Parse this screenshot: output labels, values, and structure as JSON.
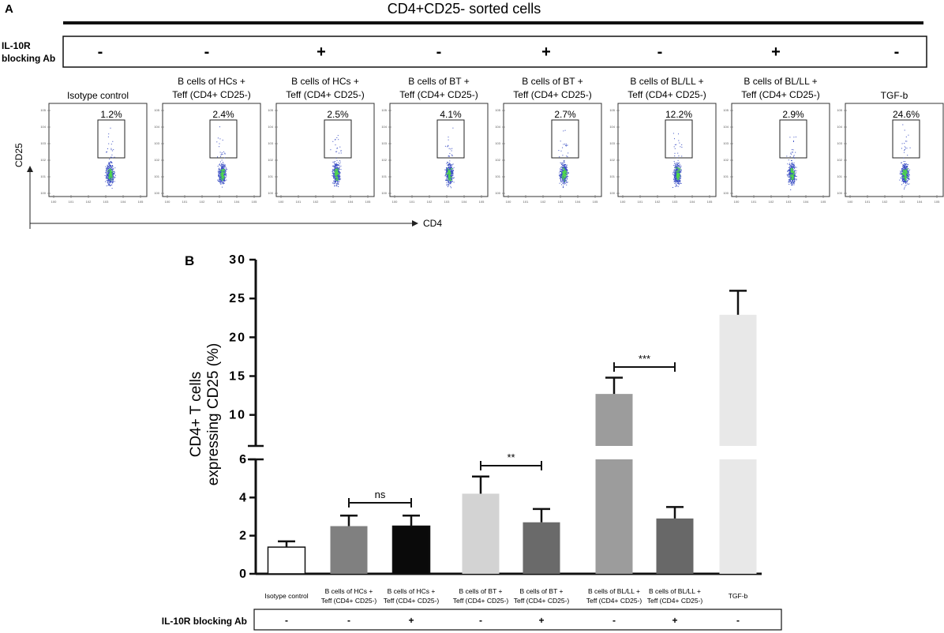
{
  "panel_a": {
    "label": "A",
    "title": "CD4+CD25- sorted cells",
    "il10r_label_line1": "IL-10R",
    "il10r_label_line2": "blocking Ab",
    "il10r_signs": [
      "-",
      "-",
      "+",
      "-",
      "+",
      "-",
      "+",
      "-"
    ],
    "x_axis_label": "CD4",
    "y_axis_label": "CD25",
    "plots": [
      {
        "title_line1": "Isotype control",
        "title_line2": "",
        "percent": "1.2%"
      },
      {
        "title_line1": "B cells of HCs +",
        "title_line2": "Teff (CD4+ CD25-)",
        "percent": "2.4%"
      },
      {
        "title_line1": "B cells of HCs +",
        "title_line2": "Teff (CD4+ CD25-)",
        "percent": "2.5%"
      },
      {
        "title_line1": "B cells of BT +",
        "title_line2": "Teff (CD4+ CD25-)",
        "percent": "4.1%"
      },
      {
        "title_line1": "B cells of BT +",
        "title_line2": "Teff (CD4+ CD25-)",
        "percent": "2.7%"
      },
      {
        "title_line1": "B cells of BL/LL +",
        "title_line2": "Teff (CD4+ CD25-)",
        "percent": "12.2%"
      },
      {
        "title_line1": "B cells of BL/LL +",
        "title_line2": "Teff (CD4+ CD25-)",
        "percent": "2.9%"
      },
      {
        "title_line1": "TGF-b",
        "title_line2": "",
        "percent": "24.6%"
      }
    ],
    "colors": {
      "dot_blue": "#3b4fc4",
      "dot_green": "#4fd84a",
      "frame": "#333333"
    }
  },
  "panel_b": {
    "label": "B",
    "il10r_label": "IL-10R blocking Ab",
    "il10r_signs": [
      "-",
      "-",
      "+",
      "-",
      "+",
      "-",
      "+",
      "-"
    ],
    "significance": [
      {
        "from": 1,
        "to": 2,
        "label": "ns"
      },
      {
        "from": 3,
        "to": 4,
        "label": "**"
      },
      {
        "from": 5,
        "to": 6,
        "label": "***"
      }
    ]
  },
  "chart_data": {
    "type": "bar",
    "title": "",
    "xlabel": "",
    "ylabel_line1": "CD4+ T cells",
    "ylabel_line2": "expressing CD25 (%)",
    "categories": [
      {
        "line1": "Isotype control",
        "line2": ""
      },
      {
        "line1": "B cells of HCs +",
        "line2": "Teff (CD4+ CD25-)"
      },
      {
        "line1": "B cells of HCs +",
        "line2": "Teff (CD4+ CD25-)"
      },
      {
        "line1": "B cells of BT +",
        "line2": "Teff (CD4+ CD25-)"
      },
      {
        "line1": "B cells of BT +",
        "line2": "Teff (CD4+ CD25-)"
      },
      {
        "line1": "B cells of BL/LL +",
        "line2": "Teff (CD4+ CD25-)"
      },
      {
        "line1": "B cells of BL/LL +",
        "line2": "Teff (CD4+ CD25-)"
      },
      {
        "line1": "TGF-b",
        "line2": ""
      }
    ],
    "values": [
      1.4,
      2.5,
      2.5,
      4.2,
      2.7,
      12.7,
      2.9,
      22.9
    ],
    "errors": [
      0.3,
      0.55,
      0.55,
      0.9,
      0.7,
      2.1,
      0.6,
      3.1
    ],
    "bar_colors": [
      "#ffffff",
      "#808080",
      "#0a0a0a",
      "#d3d3d3",
      "#6a6a6a",
      "#9c9c9c",
      "#686868",
      "#e8e8e8"
    ],
    "y_axis_broken": true,
    "lower_segment": {
      "range": [
        0,
        6
      ],
      "ticks": [
        0,
        2,
        4,
        6
      ]
    },
    "upper_segment": {
      "range": [
        6,
        30
      ],
      "ticks": [
        10,
        15,
        20,
        25,
        30
      ]
    },
    "ylim": [
      0,
      30
    ]
  }
}
